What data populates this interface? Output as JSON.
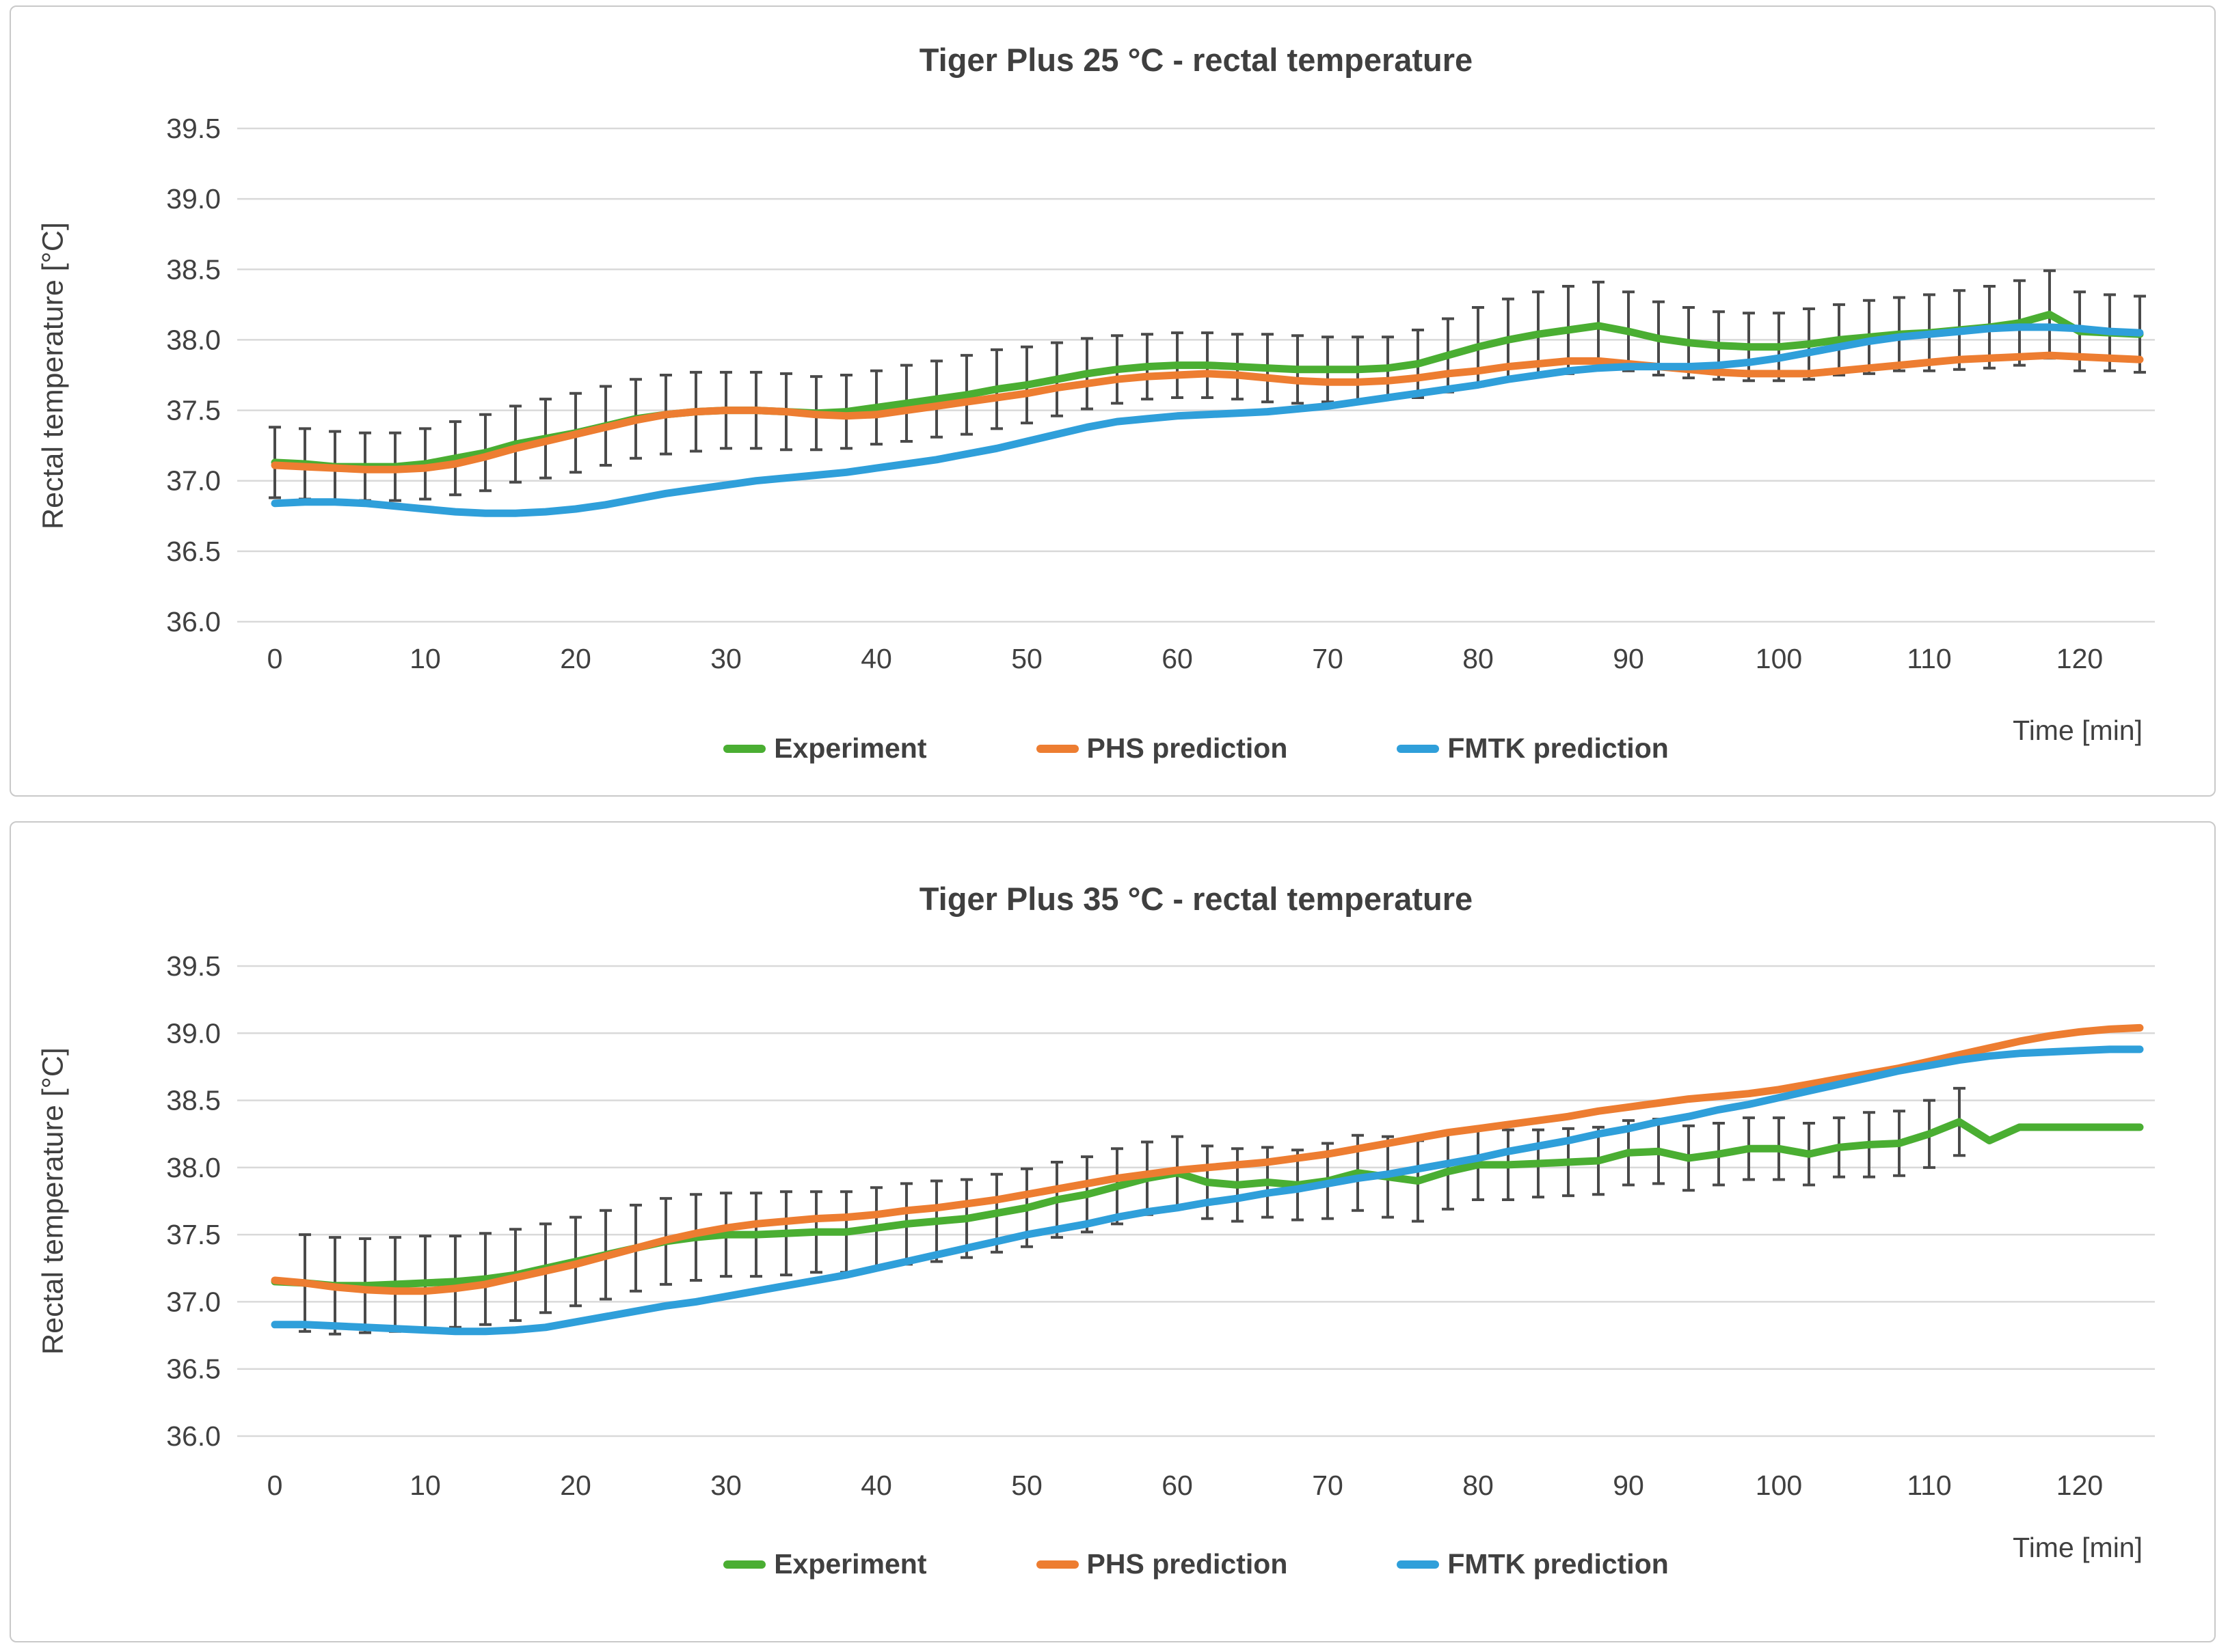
{
  "page": {
    "background": "#ffffff",
    "panel_border_color": "#c9c9c9",
    "grid_color": "#d9d9d9",
    "text_color": "#404040",
    "errorbar_color": "#4a4a4a"
  },
  "chart_data": [
    {
      "type": "line",
      "title": "Tiger Plus 25 °C - rectal temperature",
      "ylabel": "Rectal temperature [°C]",
      "xlabel": "Time [min]",
      "legend_position": "bottom-center",
      "grid": "horizontal-only",
      "ylim": [
        36.0,
        39.5
      ],
      "xlim": [
        0,
        125
      ],
      "yticks": [
        "39.5",
        "39.0",
        "38.5",
        "38.0",
        "37.5",
        "37.0",
        "36.5",
        "36.0"
      ],
      "xticks": [
        0,
        10,
        20,
        30,
        40,
        50,
        60,
        70,
        80,
        90,
        100,
        110,
        120
      ],
      "x_unit": "min",
      "x_start_min": 0,
      "x_step_min": 2,
      "series": [
        {
          "id": "experiment",
          "name": "Experiment",
          "color": "#4aae32",
          "values": [
            37.13,
            37.12,
            37.1,
            37.1,
            37.1,
            37.12,
            37.16,
            37.2,
            37.26,
            37.3,
            37.34,
            37.39,
            37.44,
            37.47,
            37.49,
            37.5,
            37.5,
            37.49,
            37.48,
            37.49,
            37.52,
            37.55,
            37.58,
            37.61,
            37.65,
            37.68,
            37.72,
            37.76,
            37.79,
            37.81,
            37.82,
            37.82,
            37.81,
            37.8,
            37.79,
            37.79,
            37.79,
            37.8,
            37.83,
            37.89,
            37.95,
            38.0,
            38.04,
            38.07,
            38.1,
            38.06,
            38.01,
            37.98,
            37.96,
            37.95,
            37.95,
            37.97,
            38.0,
            38.02,
            38.04,
            38.05,
            38.07,
            38.09,
            38.12,
            38.18,
            38.06,
            38.05,
            38.04
          ]
        },
        {
          "id": "phs",
          "name": "PHS prediction",
          "color": "#ed7d31",
          "values": [
            37.11,
            37.1,
            37.09,
            37.08,
            37.08,
            37.09,
            37.12,
            37.17,
            37.23,
            37.28,
            37.33,
            37.38,
            37.43,
            37.47,
            37.49,
            37.5,
            37.5,
            37.49,
            37.47,
            37.46,
            37.47,
            37.5,
            37.53,
            37.56,
            37.59,
            37.62,
            37.66,
            37.69,
            37.72,
            37.74,
            37.75,
            37.76,
            37.75,
            37.73,
            37.71,
            37.7,
            37.7,
            37.71,
            37.73,
            37.76,
            37.78,
            37.81,
            37.83,
            37.85,
            37.85,
            37.83,
            37.81,
            37.79,
            37.77,
            37.76,
            37.76,
            37.76,
            37.78,
            37.8,
            37.82,
            37.84,
            37.86,
            37.87,
            37.88,
            37.89,
            37.88,
            37.87,
            37.86
          ]
        },
        {
          "id": "fmtk",
          "name": "FMTK prediction",
          "color": "#2f9fda",
          "values": [
            36.84,
            36.85,
            36.85,
            36.84,
            36.82,
            36.8,
            36.78,
            36.77,
            36.77,
            36.78,
            36.8,
            36.83,
            36.87,
            36.91,
            36.94,
            36.97,
            37.0,
            37.02,
            37.04,
            37.06,
            37.09,
            37.12,
            37.15,
            37.19,
            37.23,
            37.28,
            37.33,
            37.38,
            37.42,
            37.44,
            37.46,
            37.47,
            37.48,
            37.49,
            37.51,
            37.53,
            37.56,
            37.59,
            37.62,
            37.65,
            37.68,
            37.72,
            37.75,
            37.78,
            37.8,
            37.81,
            37.81,
            37.81,
            37.82,
            37.84,
            37.87,
            37.91,
            37.95,
            37.99,
            38.02,
            38.04,
            38.06,
            38.08,
            38.09,
            38.09,
            38.08,
            38.06,
            38.05
          ]
        }
      ],
      "error_bars": {
        "attached_to": "experiment",
        "half_lengths": [
          0.25,
          0.25,
          0.25,
          0.24,
          0.24,
          0.25,
          0.26,
          0.27,
          0.27,
          0.28,
          0.28,
          0.28,
          0.28,
          0.28,
          0.28,
          0.27,
          0.27,
          0.27,
          0.26,
          0.26,
          0.26,
          0.27,
          0.27,
          0.28,
          0.28,
          0.27,
          0.26,
          0.25,
          0.24,
          0.23,
          0.23,
          0.23,
          0.23,
          0.24,
          0.24,
          0.23,
          0.23,
          0.22,
          0.24,
          0.26,
          0.28,
          0.29,
          0.3,
          0.31,
          0.31,
          0.28,
          0.26,
          0.25,
          0.24,
          0.24,
          0.24,
          0.25,
          0.25,
          0.26,
          0.26,
          0.27,
          0.28,
          0.29,
          0.3,
          0.31,
          0.28,
          0.27,
          0.27
        ]
      }
    },
    {
      "type": "line",
      "title": "Tiger Plus 35 °C - rectal temperature",
      "ylabel": "Rectal temperature [°C]",
      "xlabel": "Time [min]",
      "legend_position": "bottom-center",
      "grid": "horizontal-only",
      "ylim": [
        36.0,
        39.5
      ],
      "xlim": [
        0,
        125
      ],
      "yticks": [
        "39.5",
        "39.0",
        "38.5",
        "38.0",
        "37.5",
        "37.0",
        "36.5",
        "36.0"
      ],
      "xticks": [
        0,
        10,
        20,
        30,
        40,
        50,
        60,
        70,
        80,
        90,
        100,
        110,
        120
      ],
      "x_unit": "min",
      "x_start_min": 0,
      "x_step_min": 2,
      "series": [
        {
          "id": "experiment",
          "name": "Experiment",
          "color": "#4aae32",
          "values": [
            37.15,
            37.14,
            37.12,
            37.12,
            37.13,
            37.14,
            37.15,
            37.17,
            37.2,
            37.25,
            37.3,
            37.35,
            37.4,
            37.45,
            37.48,
            37.5,
            37.5,
            37.51,
            37.52,
            37.52,
            37.55,
            37.58,
            37.6,
            37.62,
            37.66,
            37.7,
            37.76,
            37.8,
            37.86,
            37.92,
            37.96,
            37.89,
            37.87,
            37.89,
            37.87,
            37.9,
            37.96,
            37.93,
            37.9,
            37.97,
            38.02,
            38.02,
            38.03,
            38.04,
            38.05,
            38.11,
            38.12,
            38.07,
            38.1,
            38.14,
            38.14,
            38.1,
            38.15,
            38.17,
            38.18,
            38.25,
            38.34,
            38.2,
            38.3,
            38.3,
            38.3,
            38.3,
            38.3
          ]
        },
        {
          "id": "phs",
          "name": "PHS prediction",
          "color": "#ed7d31",
          "values": [
            37.16,
            37.14,
            37.11,
            37.09,
            37.08,
            37.08,
            37.1,
            37.13,
            37.18,
            37.23,
            37.28,
            37.34,
            37.4,
            37.46,
            37.51,
            37.55,
            37.58,
            37.6,
            37.62,
            37.63,
            37.65,
            37.68,
            37.7,
            37.73,
            37.76,
            37.8,
            37.84,
            37.88,
            37.92,
            37.95,
            37.98,
            38.0,
            38.02,
            38.04,
            38.07,
            38.1,
            38.14,
            38.18,
            38.22,
            38.26,
            38.29,
            38.32,
            38.35,
            38.38,
            38.42,
            38.45,
            38.48,
            38.51,
            38.53,
            38.55,
            38.58,
            38.62,
            38.66,
            38.7,
            38.74,
            38.79,
            38.84,
            38.89,
            38.94,
            38.98,
            39.01,
            39.03,
            39.04
          ]
        },
        {
          "id": "fmtk",
          "name": "FMTK prediction",
          "color": "#2f9fda",
          "values": [
            36.83,
            36.83,
            36.82,
            36.81,
            36.8,
            36.79,
            36.78,
            36.78,
            36.79,
            36.81,
            36.85,
            36.89,
            36.93,
            36.97,
            37.0,
            37.04,
            37.08,
            37.12,
            37.16,
            37.2,
            37.25,
            37.3,
            37.35,
            37.4,
            37.45,
            37.5,
            37.54,
            37.58,
            37.63,
            37.67,
            37.7,
            37.74,
            37.77,
            37.81,
            37.84,
            37.88,
            37.92,
            37.95,
            37.99,
            38.03,
            38.07,
            38.12,
            38.16,
            38.2,
            38.25,
            38.29,
            38.34,
            38.38,
            38.43,
            38.47,
            38.52,
            38.57,
            38.62,
            38.67,
            38.72,
            38.76,
            38.8,
            38.83,
            38.85,
            38.86,
            38.87,
            38.88,
            38.88
          ]
        }
      ],
      "error_bars": {
        "attached_to": "experiment",
        "half_lengths": [
          null,
          0.36,
          0.36,
          0.35,
          0.35,
          0.35,
          0.34,
          0.34,
          0.34,
          0.33,
          0.33,
          0.33,
          0.32,
          0.32,
          0.32,
          0.31,
          0.31,
          0.31,
          0.3,
          0.3,
          0.3,
          0.3,
          0.3,
          0.29,
          0.29,
          0.29,
          0.28,
          0.28,
          0.28,
          0.27,
          0.27,
          0.27,
          0.27,
          0.26,
          0.26,
          0.28,
          0.28,
          0.3,
          0.3,
          0.28,
          0.26,
          0.26,
          0.25,
          0.25,
          0.25,
          0.24,
          0.24,
          0.24,
          0.23,
          0.23,
          0.23,
          0.23,
          0.22,
          0.24,
          0.24,
          0.25,
          0.25,
          null,
          null,
          null,
          null,
          null,
          null
        ]
      }
    }
  ]
}
